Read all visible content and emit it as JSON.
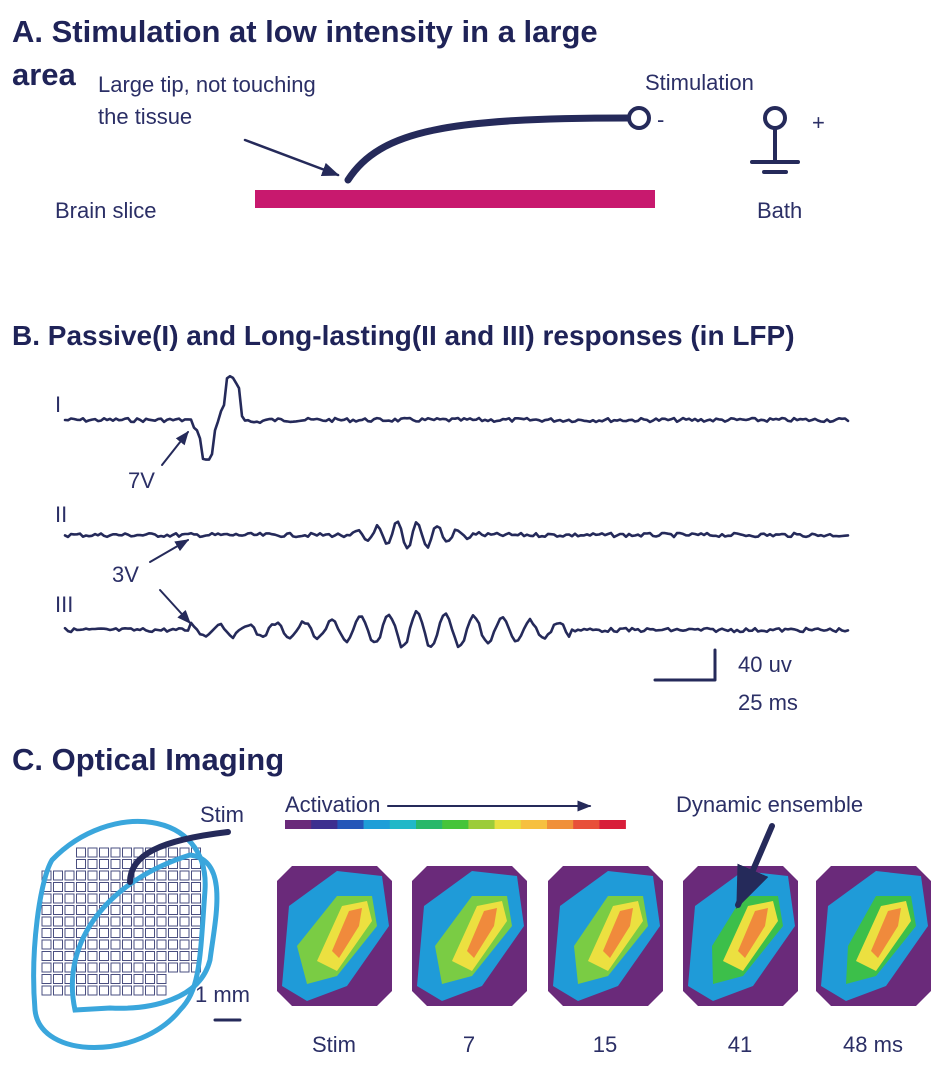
{
  "panel_a": {
    "title_lines": [
      "A. Stimulation at low intensity in a large",
      "area"
    ],
    "tip_label_lines": [
      "Large tip, not touching",
      "the tissue"
    ],
    "stimulation": "Stimulation",
    "minus": "-",
    "plus": "+",
    "slice": "Brain slice",
    "bath": "Bath"
  },
  "panel_b": {
    "title": "B. Passive(I) and Long-lasting(II and III) responses (in LFP)",
    "traces": [
      "I",
      "II",
      "III"
    ],
    "voltage_i": "7V",
    "voltage_ii_iii": "3V",
    "scale_amplitude": "40  uv",
    "scale_time": "25 ms"
  },
  "panel_c": {
    "title": "C. Optical Imaging",
    "stim": "Stim",
    "activation": "Activation",
    "ensemble": "Dynamic ensemble",
    "scale": "1 mm",
    "frames": [
      "Stim",
      "7",
      "15",
      "41",
      "48 ms"
    ]
  }
}
